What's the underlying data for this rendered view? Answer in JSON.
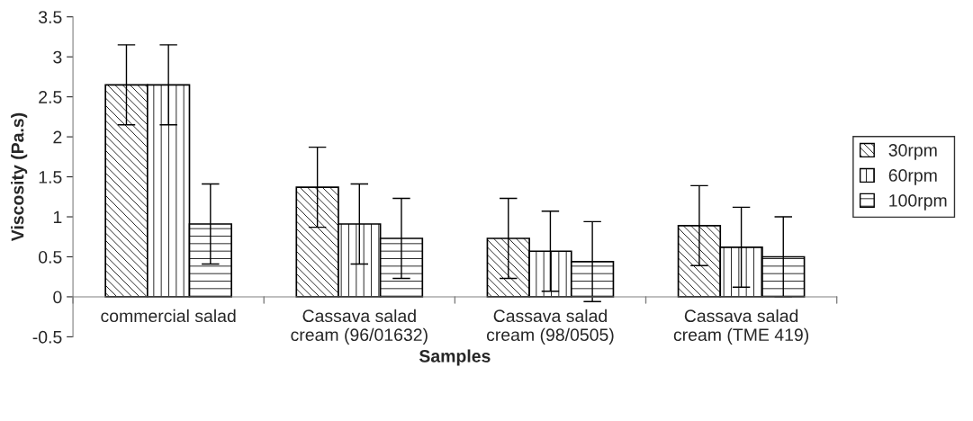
{
  "chart_data": {
    "type": "bar",
    "xlabel": "Samples",
    "ylabel": "Viscosity (Pa.s)",
    "categories": [
      "commercial salad",
      "Cassava salad\ncream (96/01632)",
      "Cassava salad\ncream (98/0505)",
      "Cassava salad\ncream (TME 419)"
    ],
    "series": [
      {
        "name": "30rpm",
        "color": "#000000",
        "values": [
          2.65,
          1.37,
          0.73,
          0.89
        ],
        "errors": [
          0.5,
          0.5,
          0.5,
          0.5
        ]
      },
      {
        "name": "60rpm",
        "color": "#000000",
        "values": [
          2.65,
          0.91,
          0.57,
          0.62
        ],
        "errors": [
          0.5,
          0.5,
          0.5,
          0.5
        ]
      },
      {
        "name": "100rpm",
        "color": "#000000",
        "values": [
          0.91,
          0.73,
          0.44,
          0.5
        ],
        "errors": [
          0.5,
          0.5,
          0.5,
          0.5
        ]
      }
    ],
    "ylim": [
      -0.5,
      3.5
    ],
    "yticks": [
      -0.5,
      0,
      0.5,
      1,
      1.5,
      2,
      2.5,
      3,
      3.5
    ],
    "grid": false,
    "legend": "right"
  }
}
